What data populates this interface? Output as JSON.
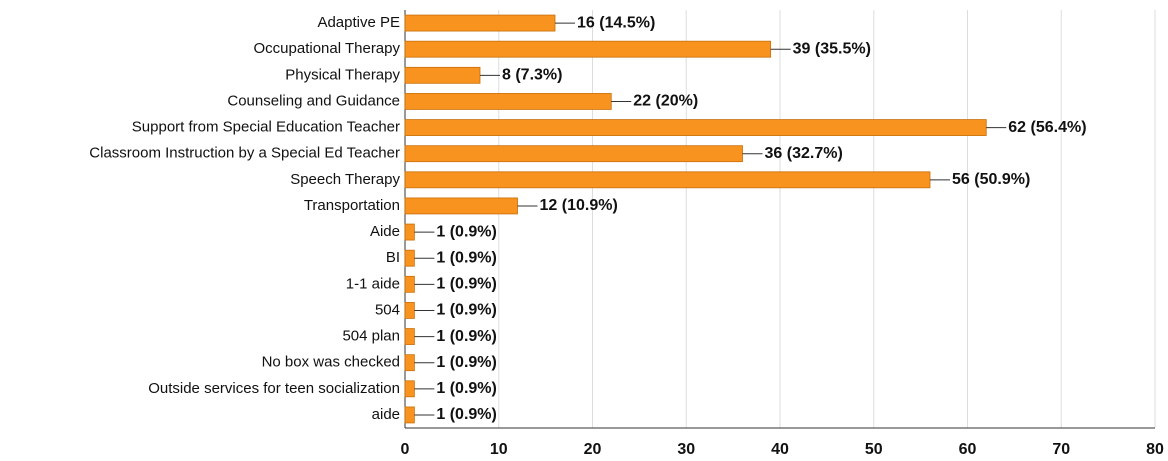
{
  "chart_data": {
    "type": "bar",
    "orientation": "horizontal",
    "categories": [
      "Adaptive PE",
      "Occupational Therapy",
      "Physical Therapy",
      "Counseling and Guidance",
      "Support from Special Education Teacher",
      "Classroom Instruction by a Special Ed Teacher",
      "Speech Therapy",
      "Transportation",
      "Aide",
      "BI",
      "1-1 aide",
      "504",
      "504 plan",
      "No box was checked",
      "Outside services for teen socialization",
      "aide"
    ],
    "values": [
      16,
      39,
      8,
      22,
      62,
      36,
      56,
      12,
      1,
      1,
      1,
      1,
      1,
      1,
      1,
      1
    ],
    "value_labels": [
      "16 (14.5%)",
      "39 (35.5%)",
      "8 (7.3%)",
      "22 (20%)",
      "62 (56.4%)",
      "36 (32.7%)",
      "56 (50.9%)",
      "12 (10.9%)",
      "1 (0.9%)",
      "1 (0.9%)",
      "1 (0.9%)",
      "1 (0.9%)",
      "1 (0.9%)",
      "1 (0.9%)",
      "1 (0.9%)",
      "1 (0.9%)"
    ],
    "color": "#f7931e",
    "xlim": [
      0,
      80
    ],
    "xticks": [
      0,
      10,
      20,
      30,
      40,
      50,
      60,
      70,
      80
    ],
    "grid": true
  }
}
